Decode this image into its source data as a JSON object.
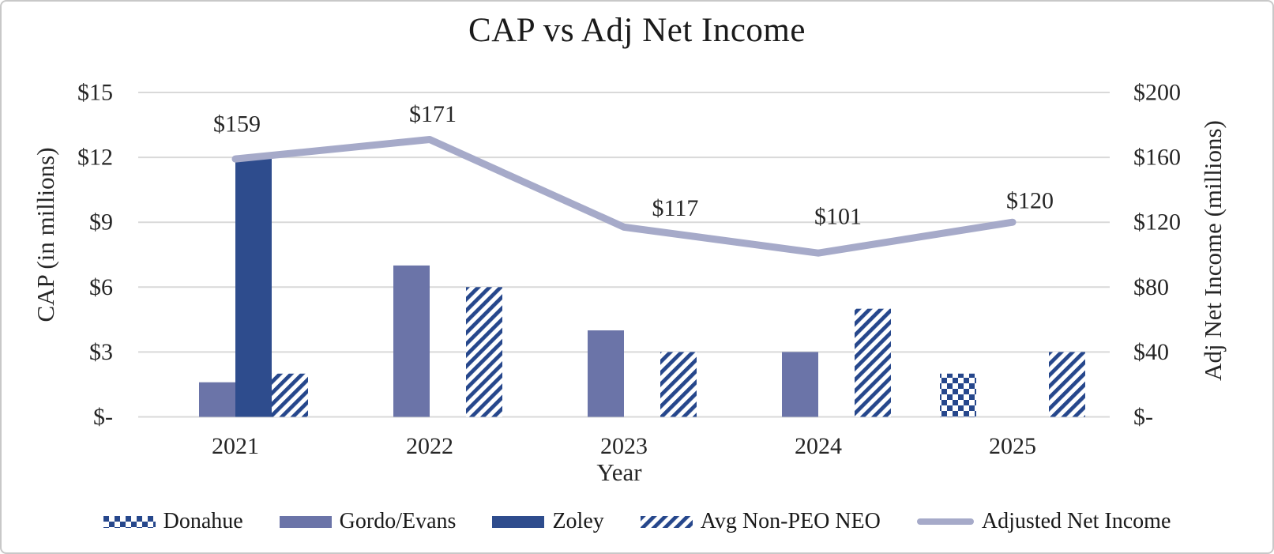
{
  "title": "CAP vs Adj Net Income",
  "axes": {
    "left": {
      "title": "CAP (in millions)",
      "ticks": [
        "$15",
        "$12",
        "$9",
        "$6",
        "$3",
        "$-"
      ],
      "max": 15
    },
    "right": {
      "title": "Adj Net Income (millions)",
      "ticks": [
        "$200",
        "$160",
        "$120",
        "$80",
        "$40",
        "$-"
      ],
      "max": 200
    },
    "x": {
      "title": "Year",
      "categories": [
        "2021",
        "2022",
        "2023",
        "2024",
        "2025"
      ]
    }
  },
  "legend": {
    "items": [
      {
        "label": "Donahue",
        "swatch": "checker"
      },
      {
        "label": "Gordo/Evans",
        "swatch": "solid-gordo"
      },
      {
        "label": "Zoley",
        "swatch": "solid-zoley"
      },
      {
        "label": "Avg Non-PEO NEO",
        "swatch": "stripe"
      },
      {
        "label": "Adjusted Net Income",
        "swatch": "line"
      }
    ]
  },
  "colors": {
    "gordo": "#6B74A8",
    "zoley": "#2E4C8D",
    "pattern": "#26478C",
    "line": "#A6AAC9",
    "grid": "#D9D9D9",
    "text": "#262626"
  },
  "chart_data": {
    "type": "bar+line",
    "title": "CAP vs Adj Net Income",
    "xlabel": "Year",
    "ylabel_left": "CAP (in millions)",
    "ylabel_right": "Adj Net Income (millions)",
    "ylim_left": [
      0,
      15
    ],
    "ylim_right": [
      0,
      200
    ],
    "grid": true,
    "legend_position": "bottom",
    "categories": [
      "2021",
      "2022",
      "2023",
      "2024",
      "2025"
    ],
    "series": [
      {
        "name": "Donahue",
        "type": "bar",
        "axis": "left",
        "pattern": "checker",
        "values": [
          null,
          null,
          null,
          null,
          2
        ]
      },
      {
        "name": "Gordo/Evans",
        "type": "bar",
        "axis": "left",
        "pattern": "solid",
        "color": "#6B74A8",
        "values": [
          1.6,
          7,
          4,
          3,
          null
        ]
      },
      {
        "name": "Zoley",
        "type": "bar",
        "axis": "left",
        "pattern": "solid",
        "color": "#2E4C8D",
        "values": [
          12,
          null,
          null,
          null,
          null
        ]
      },
      {
        "name": "Avg Non-PEO NEO",
        "type": "bar",
        "axis": "left",
        "pattern": "stripe",
        "values": [
          2,
          6,
          3,
          5,
          3
        ]
      },
      {
        "name": "Adjusted Net Income",
        "type": "line",
        "axis": "right",
        "color": "#A6AAC9",
        "values": [
          159,
          171,
          117,
          101,
          120
        ],
        "data_labels": [
          "$159",
          "$171",
          "$117",
          "$101",
          "$120"
        ],
        "label_offsets": [
          {
            "dx": 2,
            "dy": -44
          },
          {
            "dx": 4,
            "dy": -32
          },
          {
            "dx": 65,
            "dy": -24
          },
          {
            "dx": 25,
            "dy": -46
          },
          {
            "dx": 22,
            "dy": -27
          }
        ]
      }
    ]
  }
}
